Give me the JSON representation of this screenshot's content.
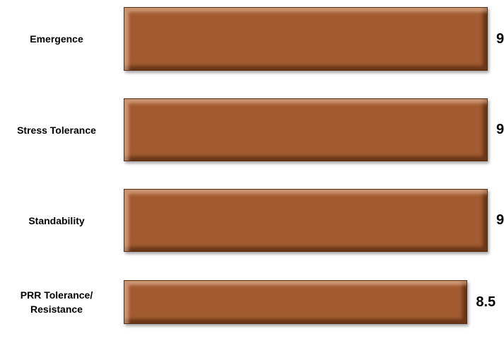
{
  "chart_data": {
    "type": "bar",
    "orientation": "horizontal",
    "categories": [
      "Emergence",
      "Stress Tolerance",
      "Standability",
      "PRR Tolerance/ Resistance"
    ],
    "values": [
      9,
      9,
      9,
      8.5
    ],
    "color": "#a25b31"
  }
}
